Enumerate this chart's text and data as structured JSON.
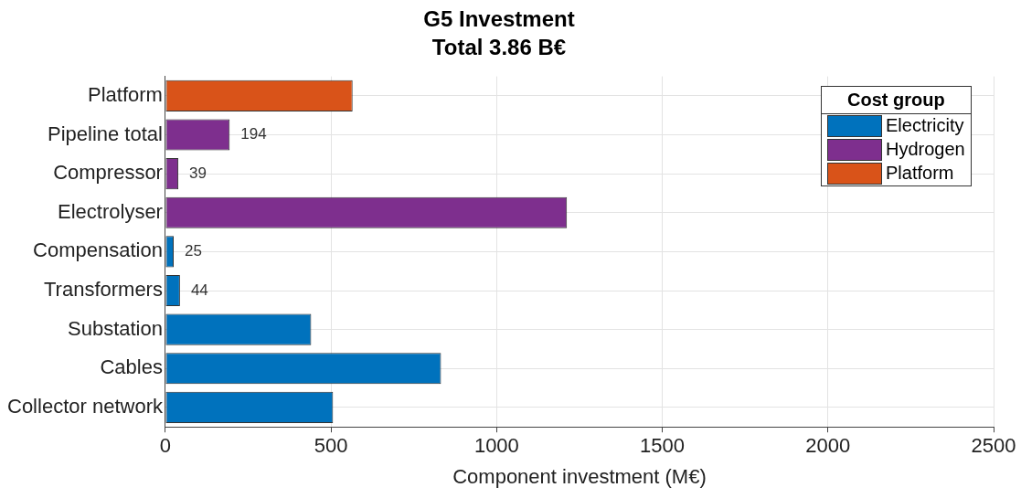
{
  "chart_data": {
    "type": "bar",
    "orientation": "horizontal",
    "title": "G5 Investment",
    "subtitle": "Total 3.86 B€",
    "xlabel": "Component investment (M€)",
    "legend_title": "Cost group",
    "legend": "top right",
    "grid": true,
    "categories": [
      "Platform",
      "Pipeline total",
      "Compressor",
      "Electrolyser",
      "Compensation",
      "Transformers",
      "Substation",
      "Cables",
      "Collector network"
    ],
    "xlim": [
      0,
      2500
    ],
    "xticks": [
      0,
      500,
      1000,
      1500,
      2000,
      2500
    ],
    "series": [
      {
        "name": "Electricity",
        "color": "#0072bd",
        "values": [
          null,
          null,
          null,
          null,
          25,
          44,
          440,
          832,
          506
        ],
        "value_labels": [
          null,
          null,
          null,
          null,
          "25",
          "44",
          null,
          null,
          null
        ]
      },
      {
        "name": "Hydrogen",
        "color": "#7e2f8e",
        "values": [
          null,
          194,
          39,
          1212,
          null,
          null,
          null,
          null,
          null
        ],
        "value_labels": [
          null,
          "194",
          "39",
          null,
          null,
          null,
          null,
          null,
          null
        ]
      },
      {
        "name": "Platform",
        "color": "#d95319",
        "values": [
          565,
          null,
          null,
          null,
          null,
          null,
          null,
          null,
          null
        ]
      }
    ]
  }
}
